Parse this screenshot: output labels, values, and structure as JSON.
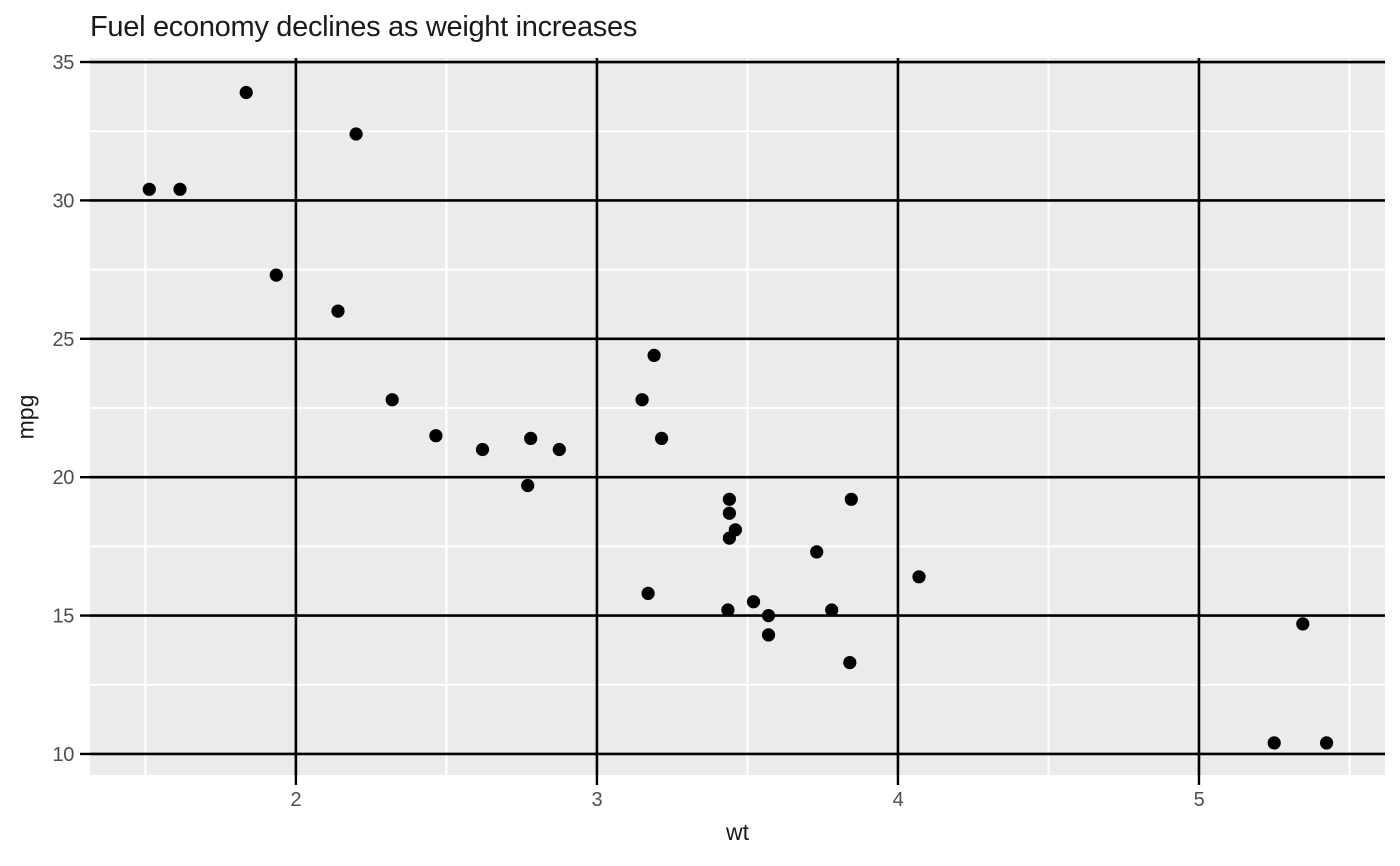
{
  "chart_data": {
    "type": "scatter",
    "title": "Fuel economy declines as weight increases",
    "xlabel": "wt",
    "ylabel": "mpg",
    "x_breaks": [
      2,
      3,
      4,
      5
    ],
    "y_breaks": [
      10,
      15,
      20,
      25,
      30,
      35
    ],
    "x_minor_breaks": [
      1.5,
      2.5,
      3.5,
      4.5,
      5.5
    ],
    "y_minor_breaks": [
      12.5,
      17.5,
      22.5,
      27.5,
      32.5
    ],
    "xlim": [
      1.316,
      5.618
    ],
    "ylim": [
      9.24,
      35.145
    ],
    "grid": "major-and-minor",
    "legend_position": "none",
    "points": [
      {
        "wt": 2.62,
        "mpg": 21.0
      },
      {
        "wt": 2.875,
        "mpg": 21.0
      },
      {
        "wt": 2.32,
        "mpg": 22.8
      },
      {
        "wt": 3.215,
        "mpg": 21.4
      },
      {
        "wt": 3.44,
        "mpg": 18.7
      },
      {
        "wt": 3.46,
        "mpg": 18.1
      },
      {
        "wt": 3.57,
        "mpg": 14.3
      },
      {
        "wt": 3.19,
        "mpg": 24.4
      },
      {
        "wt": 3.15,
        "mpg": 22.8
      },
      {
        "wt": 3.44,
        "mpg": 19.2
      },
      {
        "wt": 3.44,
        "mpg": 17.8
      },
      {
        "wt": 4.07,
        "mpg": 16.4
      },
      {
        "wt": 3.73,
        "mpg": 17.3
      },
      {
        "wt": 3.78,
        "mpg": 15.2
      },
      {
        "wt": 5.25,
        "mpg": 10.4
      },
      {
        "wt": 5.424,
        "mpg": 10.4
      },
      {
        "wt": 5.345,
        "mpg": 14.7
      },
      {
        "wt": 2.2,
        "mpg": 32.4
      },
      {
        "wt": 1.615,
        "mpg": 30.4
      },
      {
        "wt": 1.835,
        "mpg": 33.9
      },
      {
        "wt": 2.465,
        "mpg": 21.5
      },
      {
        "wt": 3.52,
        "mpg": 15.5
      },
      {
        "wt": 3.435,
        "mpg": 15.2
      },
      {
        "wt": 3.84,
        "mpg": 13.3
      },
      {
        "wt": 3.845,
        "mpg": 19.2
      },
      {
        "wt": 1.935,
        "mpg": 27.3
      },
      {
        "wt": 2.14,
        "mpg": 26.0
      },
      {
        "wt": 1.513,
        "mpg": 30.4
      },
      {
        "wt": 3.17,
        "mpg": 15.8
      },
      {
        "wt": 2.77,
        "mpg": 19.7
      },
      {
        "wt": 3.57,
        "mpg": 15.0
      },
      {
        "wt": 2.78,
        "mpg": 21.4
      }
    ]
  },
  "style": {
    "panel_bg": "#EBEBEB",
    "plot_bg": "#FFFFFF",
    "grid_major_color": "#000000",
    "grid_minor_color": "#FFFFFF",
    "point_color": "#000000",
    "tick_color": "#000000",
    "tick_label_color": "#4D4D4D",
    "axis_title_color": "#1A1A1A",
    "title_color": "#1A1A1A"
  }
}
